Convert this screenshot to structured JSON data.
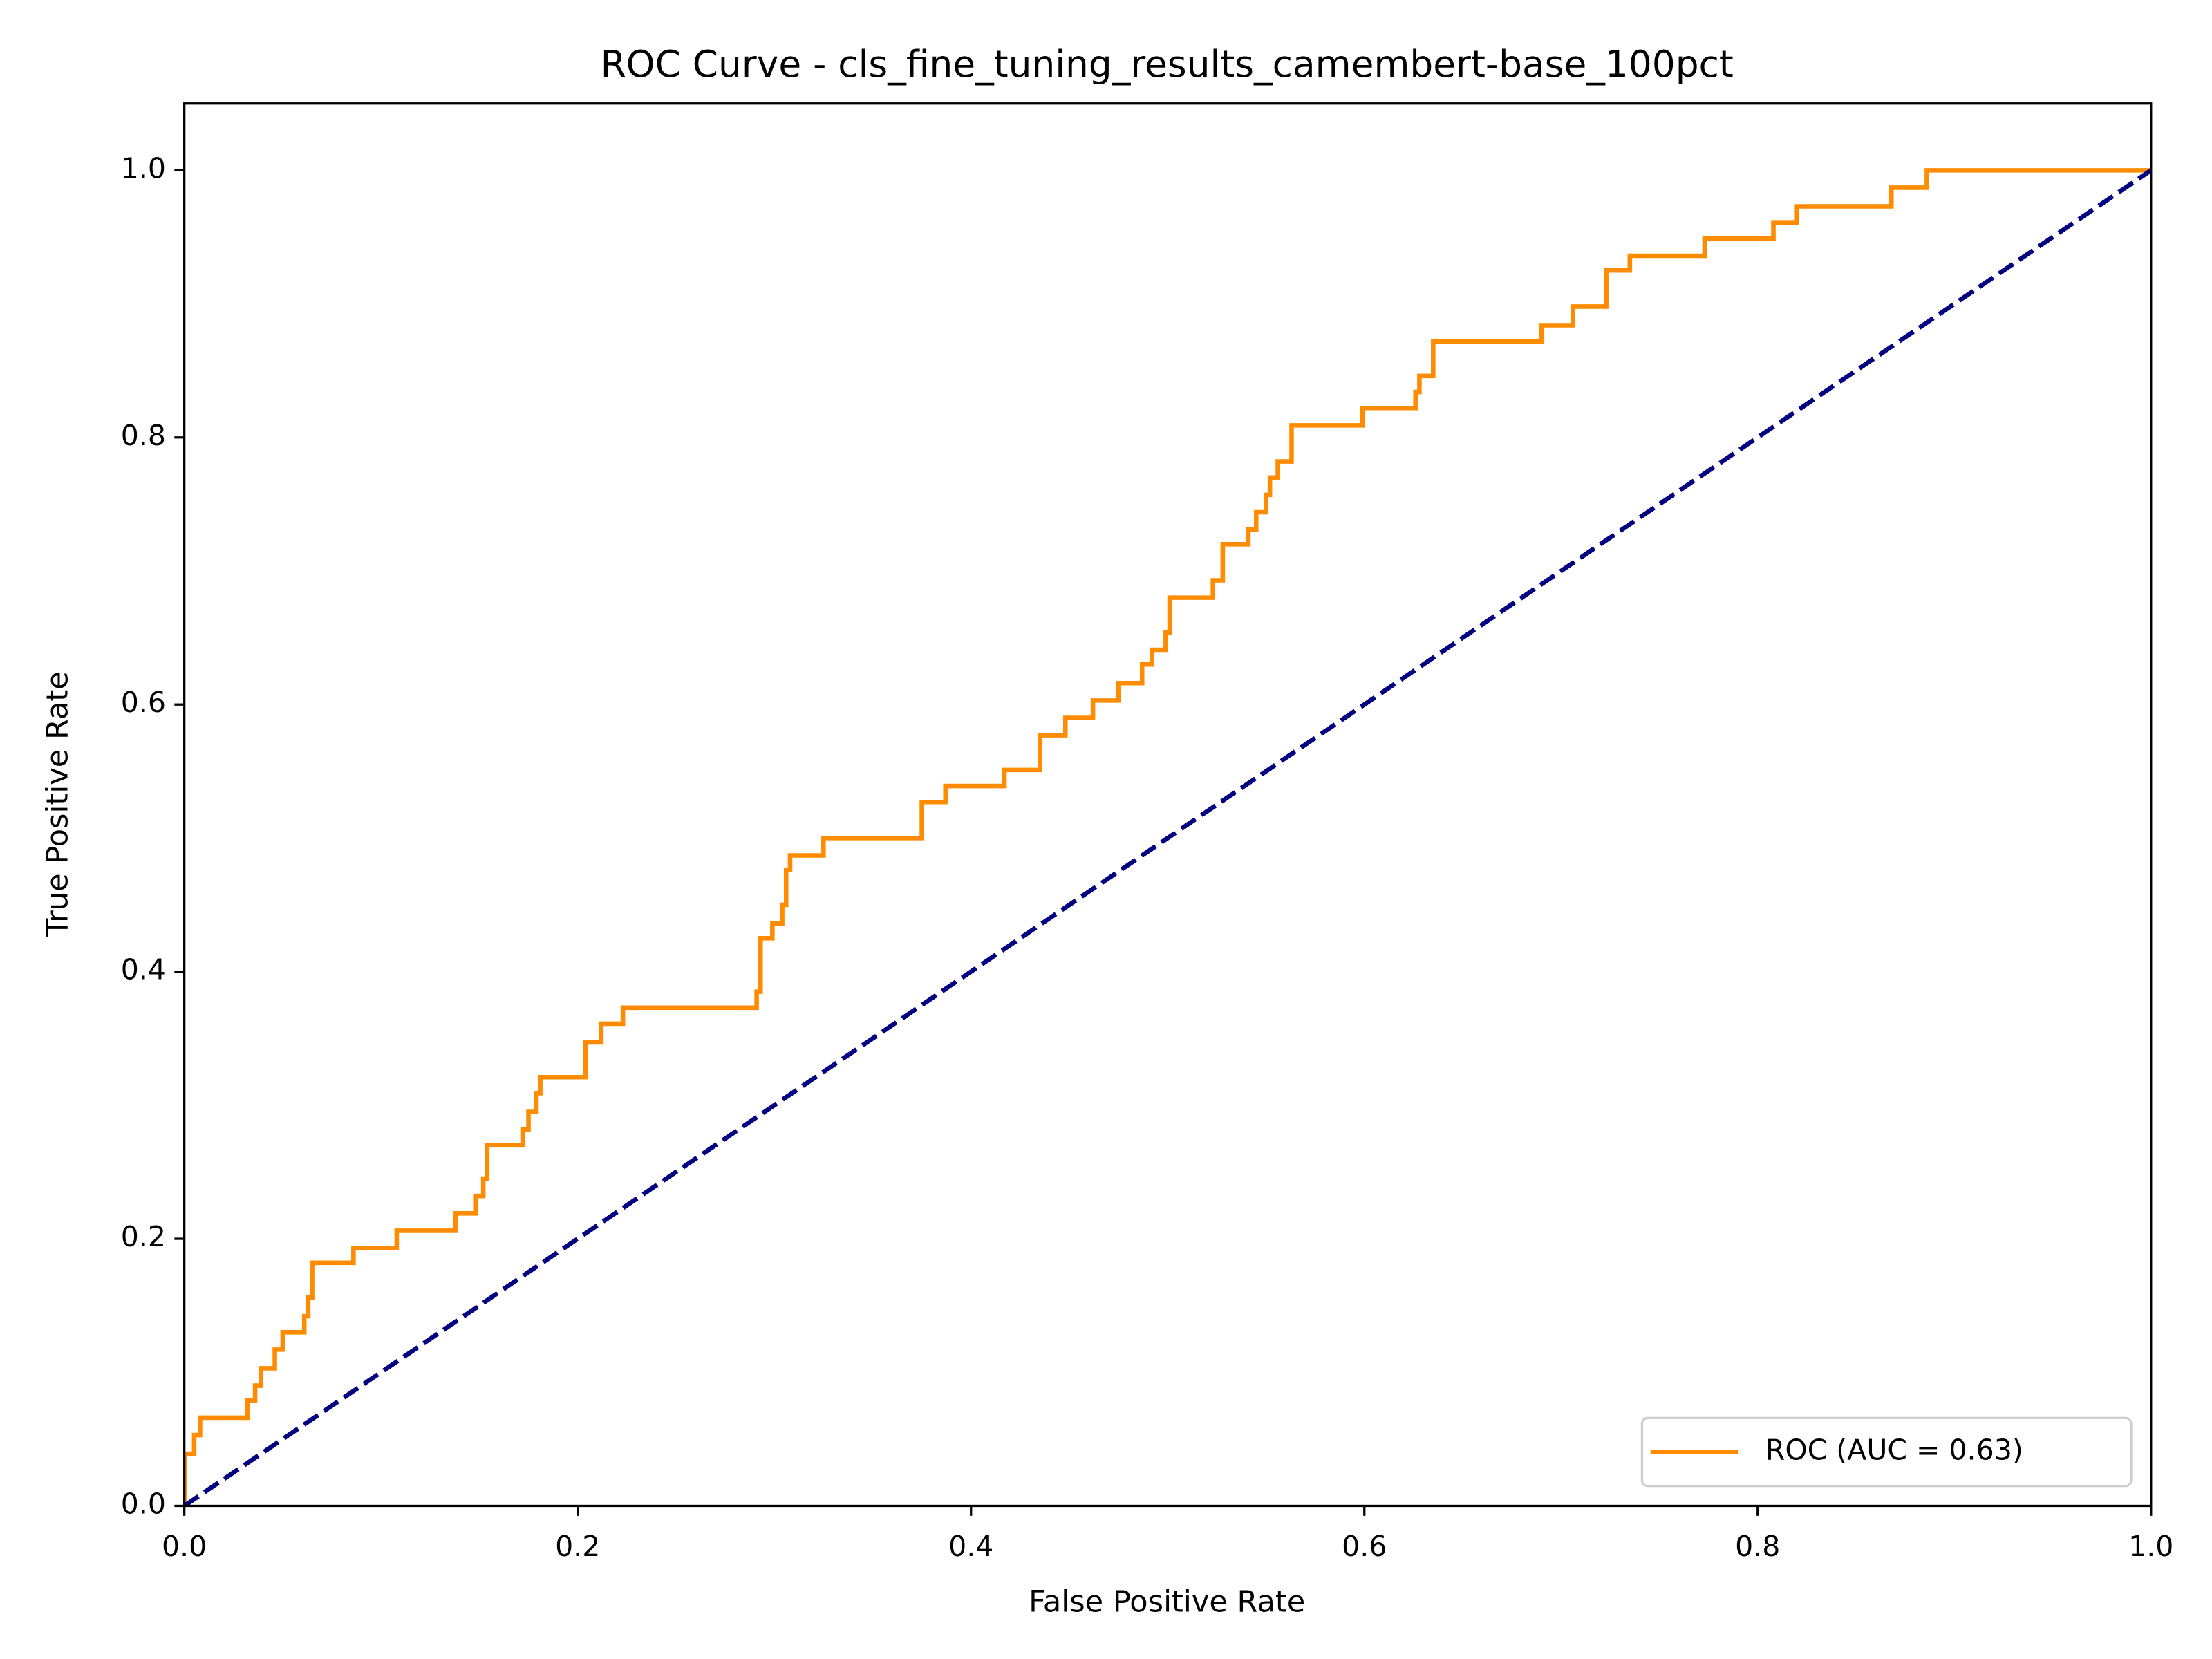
{
  "chart_data": {
    "type": "line",
    "title": "ROC Curve - cls_fine_tuning_results_camembert-base_100pct",
    "x_label": "False Positive Rate",
    "y_label": "True Positive Rate",
    "xlim": [
      0,
      1
    ],
    "ylim": [
      0,
      1.05
    ],
    "xticks": [
      {
        "value": 0,
        "label": "0.0"
      },
      0.2,
      0.4,
      0.6,
      0.8,
      {
        "value": 1,
        "label": "1.0"
      }
    ],
    "yticks": [
      {
        "value": 0,
        "label": "0.0"
      },
      0.2,
      0.4,
      0.6,
      0.8,
      {
        "value": 1,
        "label": "1.0"
      }
    ],
    "legend": "lower right",
    "series": [
      {
        "name": "ROC (AUC = 0.63)",
        "color": "#ff8c00",
        "linestyle": "solid",
        "x": [
          0,
          0,
          0.005,
          0.005,
          0.008,
          0.008,
          0.032,
          0.032,
          0.036,
          0.036,
          0.039,
          0.039,
          0.046,
          0.046,
          0.05,
          0.05,
          0.061,
          0.061,
          0.063,
          0.063,
          0.065,
          0.065,
          0.086,
          0.086,
          0.108,
          0.108,
          0.138,
          0.138,
          0.148,
          0.148,
          0.152,
          0.152,
          0.154,
          0.154,
          0.172,
          0.172,
          0.175,
          0.175,
          0.179,
          0.179,
          0.181,
          0.181,
          0.204,
          0.204,
          0.212,
          0.212,
          0.223,
          0.223,
          0.291,
          0.291,
          0.293,
          0.293,
          0.299,
          0.299,
          0.304,
          0.304,
          0.306,
          0.306,
          0.308,
          0.308,
          0.325,
          0.325,
          0.375,
          0.375,
          0.387,
          0.387,
          0.417,
          0.417,
          0.435,
          0.435,
          0.448,
          0.448,
          0.462,
          0.462,
          0.475,
          0.475,
          0.487,
          0.487,
          0.492,
          0.492,
          0.499,
          0.499,
          0.501,
          0.501,
          0.523,
          0.523,
          0.528,
          0.528,
          0.541,
          0.541,
          0.545,
          0.545,
          0.55,
          0.55,
          0.552,
          0.552,
          0.556,
          0.556,
          0.563,
          0.563,
          0.599,
          0.599,
          0.626,
          0.626,
          0.628,
          0.628,
          0.635,
          0.635,
          0.69,
          0.69,
          0.706,
          0.706,
          0.723,
          0.723,
          0.735,
          0.735,
          0.773,
          0.773,
          0.808,
          0.808,
          0.82,
          0.82,
          0.868,
          0.868,
          0.886,
          0.886,
          1.0
        ],
        "values": [
          0,
          0.039,
          0.039,
          0.053,
          0.053,
          0.066,
          0.066,
          0.079,
          0.079,
          0.09,
          0.09,
          0.103,
          0.103,
          0.117,
          0.117,
          0.13,
          0.13,
          0.142,
          0.142,
          0.156,
          0.156,
          0.182,
          0.182,
          0.193,
          0.193,
          0.206,
          0.206,
          0.219,
          0.219,
          0.232,
          0.232,
          0.245,
          0.245,
          0.27,
          0.27,
          0.282,
          0.282,
          0.295,
          0.295,
          0.309,
          0.309,
          0.321,
          0.321,
          0.347,
          0.347,
          0.361,
          0.361,
          0.373,
          0.373,
          0.385,
          0.385,
          0.425,
          0.425,
          0.436,
          0.436,
          0.45,
          0.45,
          0.476,
          0.476,
          0.487,
          0.487,
          0.5,
          0.5,
          0.527,
          0.527,
          0.539,
          0.539,
          0.551,
          0.551,
          0.577,
          0.577,
          0.59,
          0.59,
          0.603,
          0.603,
          0.616,
          0.616,
          0.63,
          0.63,
          0.641,
          0.641,
          0.654,
          0.654,
          0.68,
          0.68,
          0.693,
          0.693,
          0.72,
          0.72,
          0.731,
          0.731,
          0.744,
          0.744,
          0.757,
          0.757,
          0.77,
          0.77,
          0.782,
          0.782,
          0.809,
          0.809,
          0.822,
          0.822,
          0.834,
          0.834,
          0.846,
          0.846,
          0.872,
          0.872,
          0.884,
          0.884,
          0.898,
          0.898,
          0.925,
          0.925,
          0.936,
          0.936,
          0.949,
          0.949,
          0.961,
          0.961,
          0.973,
          0.973,
          0.987,
          0.987,
          1.0,
          1.0
        ]
      },
      {
        "color": "#000080",
        "linestyle": "dashed",
        "x": [
          0,
          1
        ],
        "values": [
          0,
          1
        ]
      }
    ]
  }
}
